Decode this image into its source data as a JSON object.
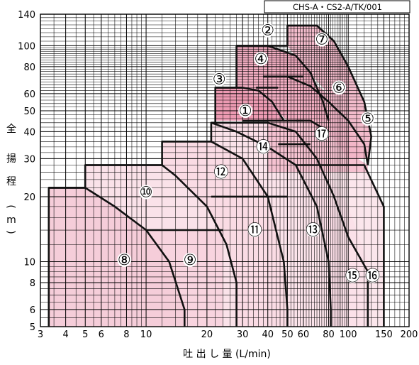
{
  "chart_data": {
    "type": "area",
    "code_label": "CHS-A・CS2-A/TK/001",
    "xlabel": "吐 出 し 量 (L/min)",
    "ylabel_chars": [
      "全",
      "揚",
      "程",
      "(",
      "m",
      ")"
    ],
    "xscale": "log",
    "yscale": "log",
    "xlim": [
      3,
      200
    ],
    "ylim": [
      5,
      140
    ],
    "grid": true,
    "x_ticks": [
      {
        "value": 3,
        "label": "3"
      },
      {
        "value": 4,
        "label": "4"
      },
      {
        "value": 5,
        "label": "5"
      },
      {
        "value": 6,
        "label": "6"
      },
      {
        "value": 8,
        "label": "8"
      },
      {
        "value": 10,
        "label": "10"
      },
      {
        "value": 20,
        "label": "20"
      },
      {
        "value": 30,
        "label": "30"
      },
      {
        "value": 40,
        "label": "40"
      },
      {
        "value": 50,
        "label": "50"
      },
      {
        "value": 60,
        "label": "60"
      },
      {
        "value": 80,
        "label": "80"
      },
      {
        "value": 100,
        "label": "100"
      },
      {
        "value": 150,
        "label": "150"
      },
      {
        "value": 200,
        "label": "200"
      }
    ],
    "y_ticks": [
      {
        "value": 5,
        "label": "5"
      },
      {
        "value": 6,
        "label": "6"
      },
      {
        "value": 8,
        "label": "8"
      },
      {
        "value": 10,
        "label": "10"
      },
      {
        "value": 20,
        "label": "20"
      },
      {
        "value": 30,
        "label": "30"
      },
      {
        "value": 40,
        "label": "40"
      },
      {
        "value": 50,
        "label": "50"
      },
      {
        "value": 60,
        "label": "60"
      },
      {
        "value": 80,
        "label": "80"
      },
      {
        "value": 100,
        "label": "100"
      },
      {
        "value": 140,
        "label": "140"
      }
    ],
    "regions": [
      {
        "label": "⑯",
        "color": "#fbe6ec",
        "points": [
          [
            42,
            28
          ],
          [
            55,
            28
          ],
          [
            60,
            28
          ],
          [
            80,
            28
          ],
          [
            100,
            28
          ],
          [
            120,
            28
          ],
          [
            150,
            18
          ],
          [
            150,
            5
          ],
          [
            50,
            5
          ]
        ]
      },
      {
        "label": "⑮",
        "color": "#fbe1e9",
        "points": [
          [
            40,
            45
          ],
          [
            50,
            45
          ],
          [
            60,
            35
          ],
          [
            65,
            35
          ],
          [
            80,
            26
          ],
          [
            100,
            18
          ],
          [
            125,
            10
          ],
          [
            125,
            5
          ],
          [
            50,
            5
          ]
        ]
      },
      {
        "label": "⑬",
        "color": "#fadde6",
        "points": [
          [
            21,
            44
          ],
          [
            40,
            44
          ],
          [
            60,
            40
          ],
          [
            80,
            25
          ],
          [
            90,
            12
          ],
          [
            90,
            5
          ],
          [
            21,
            5
          ]
        ]
      },
      {
        "label": "⑭",
        "color": "#fbe3ea",
        "points": [
          [
            21,
            44
          ],
          [
            28,
            40
          ],
          [
            40,
            34
          ],
          [
            55,
            28
          ],
          [
            70,
            18
          ],
          [
            82,
            10
          ],
          [
            82,
            5
          ],
          [
            28,
            5
          ]
        ]
      },
      {
        "label": "⑪",
        "color": "#fadbe4",
        "points": [
          [
            12,
            36
          ],
          [
            21,
            36
          ],
          [
            30,
            30
          ],
          [
            40,
            20
          ],
          [
            48,
            10
          ],
          [
            50,
            5
          ],
          [
            12,
            5
          ]
        ]
      },
      {
        "label": "⑫",
        "color": "#fae2e9",
        "points": [
          [
            5,
            28
          ],
          [
            12,
            28
          ],
          [
            14,
            25
          ],
          [
            20,
            18
          ],
          [
            25,
            12
          ],
          [
            28,
            8
          ],
          [
            28,
            5
          ],
          [
            5,
            5
          ]
        ]
      },
      {
        "label": "⑩",
        "color": "#fbe4ea",
        "points": [
          [
            3.3,
            22
          ],
          [
            5,
            22
          ],
          [
            7,
            18
          ],
          [
            10,
            14
          ],
          [
            14,
            10
          ],
          [
            16,
            6
          ],
          [
            16,
            5
          ],
          [
            3.3,
            5
          ]
        ]
      },
      {
        "label": "⑨",
        "color": "#f8d4df",
        "points": [
          [
            10,
            14
          ],
          [
            24,
            14
          ],
          [
            24,
            5
          ],
          [
            10,
            5
          ]
        ]
      },
      {
        "label": "⑧",
        "color": "#f5cdd9",
        "points": [
          [
            3.3,
            22
          ],
          [
            5,
            22
          ],
          [
            7,
            18
          ],
          [
            10,
            14
          ],
          [
            13,
            10
          ],
          [
            15.5,
            6
          ],
          [
            15.5,
            5
          ],
          [
            3.3,
            5
          ]
        ]
      },
      {
        "label": "⑰",
        "color": "#f5c2d1",
        "points": [
          [
            40,
            45
          ],
          [
            50,
            45
          ],
          [
            65,
            45
          ],
          [
            80,
            40
          ],
          [
            100,
            32
          ],
          [
            125,
            28
          ],
          [
            125,
            26
          ],
          [
            40,
            26
          ]
        ]
      },
      {
        "label": "⑥",
        "color": "#f2b4c7",
        "points": [
          [
            42,
            72
          ],
          [
            55,
            72
          ],
          [
            70,
            65
          ],
          [
            85,
            55
          ],
          [
            100,
            45
          ],
          [
            110,
            40
          ],
          [
            100,
            34
          ],
          [
            60,
            45
          ],
          [
            50,
            45
          ]
        ]
      },
      {
        "label": "⑤",
        "color": "#f2b6c8",
        "points": [
          [
            50,
            72
          ],
          [
            60,
            72
          ],
          [
            80,
            60
          ],
          [
            100,
            48
          ],
          [
            120,
            40
          ],
          [
            125,
            30
          ],
          [
            100,
            30
          ],
          [
            80,
            40
          ],
          [
            60,
            45
          ]
        ]
      },
      {
        "label": "③",
        "color": "#ef9fb8",
        "points": [
          [
            22,
            64
          ],
          [
            30,
            64
          ],
          [
            36,
            62
          ],
          [
            42,
            55
          ],
          [
            48,
            45
          ],
          [
            22,
            45
          ]
        ]
      },
      {
        "label": "①",
        "color": "#ec9ab2",
        "points": [
          [
            22,
            64
          ],
          [
            30,
            64
          ],
          [
            36,
            62
          ],
          [
            40,
            56
          ],
          [
            44,
            46
          ],
          [
            22,
            46
          ]
        ]
      },
      {
        "label": "②",
        "color": "#f0a9be",
        "points": [
          [
            28,
            100
          ],
          [
            40,
            100
          ],
          [
            55,
            90
          ],
          [
            65,
            75
          ],
          [
            75,
            55
          ],
          [
            80,
            45
          ],
          [
            50,
            45
          ],
          [
            40,
            55
          ],
          [
            28,
            64
          ]
        ]
      },
      {
        "label": "④",
        "color": "#f1adc1",
        "points": [
          [
            28,
            100
          ],
          [
            40,
            100
          ],
          [
            50,
            90
          ],
          [
            60,
            75
          ],
          [
            70,
            60
          ],
          [
            80,
            45
          ],
          [
            60,
            45
          ],
          [
            45,
            55
          ],
          [
            35,
            64
          ],
          [
            28,
            64
          ]
        ]
      },
      {
        "label": "⑦",
        "color": "#f3bccc",
        "points": [
          [
            50,
            124
          ],
          [
            70,
            124
          ],
          [
            85,
            105
          ],
          [
            100,
            80
          ],
          [
            120,
            55
          ],
          [
            130,
            38
          ],
          [
            125,
            30
          ],
          [
            100,
            42
          ],
          [
            80,
            60
          ],
          [
            60,
            80
          ],
          [
            50,
            100
          ]
        ]
      }
    ],
    "region_labels": [
      {
        "text": "①",
        "x": 31,
        "y": 50
      },
      {
        "text": "②",
        "x": 40,
        "y": 118
      },
      {
        "text": "③",
        "x": 23,
        "y": 70
      },
      {
        "text": "④",
        "x": 37,
        "y": 87
      },
      {
        "text": "⑤",
        "x": 125,
        "y": 46
      },
      {
        "text": "⑥",
        "x": 90,
        "y": 64
      },
      {
        "text": "⑦",
        "x": 74,
        "y": 107
      },
      {
        "text": "⑧",
        "x": 7.8,
        "y": 10.2
      },
      {
        "text": "⑨",
        "x": 16.5,
        "y": 10.2
      },
      {
        "text": "⑩",
        "x": 10,
        "y": 21
      },
      {
        "text": "⑪",
        "x": 34.5,
        "y": 14
      },
      {
        "text": "⑫",
        "x": 23.5,
        "y": 26
      },
      {
        "text": "⑬",
        "x": 67,
        "y": 14
      },
      {
        "text": "⑭",
        "x": 38,
        "y": 34
      },
      {
        "text": "⑮",
        "x": 105,
        "y": 8.6
      },
      {
        "text": "⑯",
        "x": 132,
        "y": 8.6
      },
      {
        "text": "⑰",
        "x": 74,
        "y": 39
      }
    ],
    "boundary_lines": [
      [
        [
          3.3,
          5
        ],
        [
          3.3,
          22
        ],
        [
          5,
          22
        ]
      ],
      [
        [
          5,
          22
        ],
        [
          5,
          28
        ],
        [
          12,
          28
        ]
      ],
      [
        [
          12,
          28
        ],
        [
          12,
          36
        ],
        [
          21,
          36
        ]
      ],
      [
        [
          21,
          36
        ],
        [
          21,
          44
        ],
        [
          28,
          44
        ],
        [
          40,
          44
        ]
      ],
      [
        [
          22,
          44
        ],
        [
          22,
          64
        ],
        [
          30,
          64
        ]
      ],
      [
        [
          28,
          64
        ],
        [
          28,
          100
        ],
        [
          40,
          100
        ]
      ],
      [
        [
          40,
          100
        ],
        [
          50,
          100
        ],
        [
          50,
          124
        ],
        [
          70,
          124
        ]
      ],
      [
        [
          38,
          72
        ],
        [
          50,
          72
        ],
        [
          60,
          72
        ]
      ],
      [
        [
          3.3,
          22
        ],
        [
          5,
          22
        ],
        [
          7,
          18
        ],
        [
          10,
          14
        ],
        [
          13,
          10
        ],
        [
          15.5,
          6
        ],
        [
          15.5,
          5
        ]
      ],
      [
        [
          5,
          28
        ],
        [
          12,
          28
        ],
        [
          14,
          25
        ],
        [
          20,
          18
        ],
        [
          25,
          12
        ],
        [
          28,
          8
        ],
        [
          28,
          5
        ]
      ],
      [
        [
          12,
          36
        ],
        [
          21,
          36
        ],
        [
          30,
          30
        ],
        [
          40,
          20
        ],
        [
          48,
          10
        ],
        [
          50,
          6
        ],
        [
          50,
          5
        ]
      ],
      [
        [
          21,
          44
        ],
        [
          28,
          40
        ],
        [
          40,
          34
        ],
        [
          55,
          28
        ],
        [
          70,
          18
        ],
        [
          80,
          10
        ],
        [
          82,
          6
        ],
        [
          82,
          5
        ]
      ],
      [
        [
          40,
          44
        ],
        [
          55,
          40
        ],
        [
          70,
          30
        ],
        [
          85,
          20
        ],
        [
          100,
          13
        ],
        [
          125,
          9
        ],
        [
          125,
          5
        ]
      ],
      [
        [
          55,
          28
        ],
        [
          80,
          28
        ],
        [
          100,
          28
        ],
        [
          120,
          28
        ],
        [
          150,
          18
        ],
        [
          150,
          5
        ]
      ],
      [
        [
          22,
          64
        ],
        [
          30,
          64
        ],
        [
          36,
          62
        ],
        [
          42,
          55
        ],
        [
          48,
          45
        ]
      ],
      [
        [
          28,
          100
        ],
        [
          40,
          100
        ],
        [
          55,
          90
        ],
        [
          65,
          75
        ],
        [
          75,
          55
        ],
        [
          80,
          45
        ]
      ],
      [
        [
          38,
          72
        ],
        [
          50,
          72
        ],
        [
          65,
          65
        ],
        [
          80,
          55
        ],
        [
          100,
          45
        ],
        [
          120,
          35
        ],
        [
          125,
          28
        ]
      ],
      [
        [
          50,
          124
        ],
        [
          70,
          124
        ],
        [
          85,
          105
        ],
        [
          100,
          80
        ],
        [
          120,
          55
        ],
        [
          130,
          38
        ],
        [
          125,
          28
        ]
      ],
      [
        [
          10,
          14
        ],
        [
          24,
          14
        ]
      ],
      [
        [
          21,
          20
        ],
        [
          50,
          20
        ]
      ],
      [
        [
          30,
          45
        ],
        [
          60,
          45
        ]
      ],
      [
        [
          45,
          35
        ],
        [
          65,
          35
        ]
      ],
      [
        [
          55,
          45
        ],
        [
          65,
          45
        ],
        [
          80,
          40
        ]
      ],
      [
        [
          35,
          64
        ],
        [
          45,
          64
        ]
      ]
    ]
  }
}
